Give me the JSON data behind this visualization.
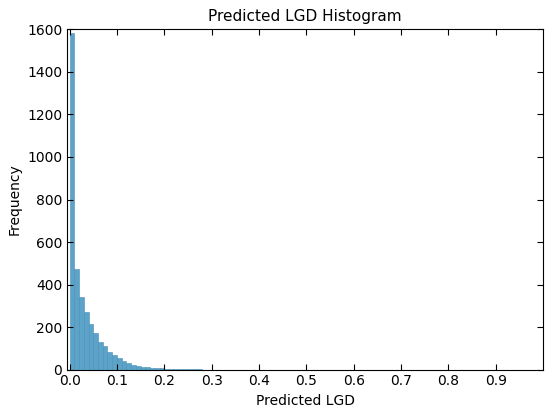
{
  "title": "Predicted LGD Histogram",
  "xlabel": "Predicted LGD",
  "ylabel": "Frequency",
  "bar_color": "#5ba3c9",
  "bar_edge_color": "#4a8fb5",
  "xlim": [
    -0.005,
    1.0
  ],
  "ylim": [
    0,
    1600
  ],
  "xticks": [
    0.0,
    0.1,
    0.2,
    0.3,
    0.4,
    0.5,
    0.6,
    0.7,
    0.8,
    0.9
  ],
  "yticks": [
    0,
    200,
    400,
    600,
    800,
    1000,
    1200,
    1400,
    1600
  ],
  "bin_heights": [
    1585,
    475,
    340,
    270,
    215,
    170,
    130,
    110,
    85,
    70,
    55,
    42,
    30,
    22,
    18,
    14,
    10,
    8,
    7,
    6,
    5,
    4,
    3,
    2,
    2,
    1,
    1,
    1,
    0,
    0,
    0,
    0,
    0,
    0,
    0,
    0,
    0,
    0,
    0,
    0,
    0,
    0,
    0,
    0,
    0,
    0,
    0,
    0,
    0,
    0,
    0,
    0,
    0,
    0,
    0,
    0,
    0,
    0,
    0,
    0,
    0,
    0,
    0,
    0,
    0,
    0,
    0,
    0,
    0,
    0,
    0,
    0,
    0,
    0,
    0,
    0,
    0,
    0,
    0,
    0,
    0,
    0,
    0,
    0,
    0,
    0,
    0,
    0,
    0,
    0,
    0,
    0,
    0,
    0,
    0,
    0,
    0,
    0,
    0,
    0
  ],
  "bin_width": 0.01,
  "n_bins": 100,
  "title_fontsize": 11,
  "label_fontsize": 10,
  "tick_fontsize": 10,
  "figsize": [
    5.6,
    4.2
  ],
  "dpi": 100
}
